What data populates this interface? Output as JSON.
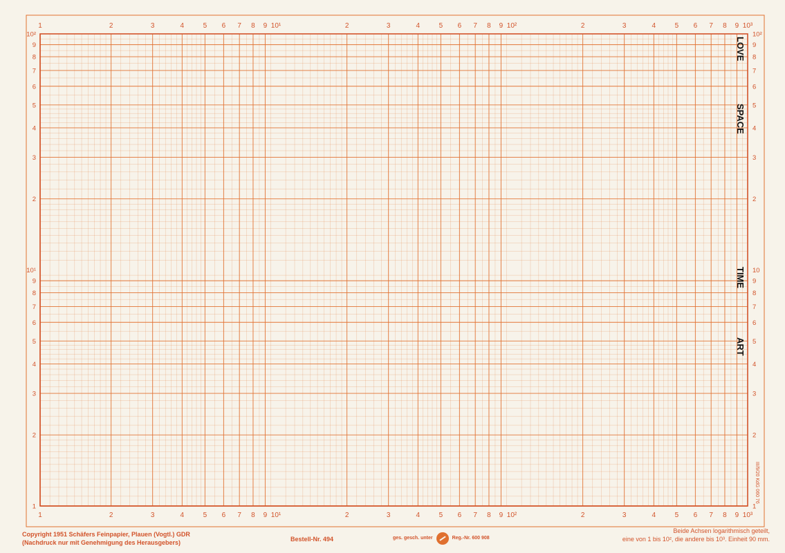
{
  "paper": {
    "x_axis": {
      "scale": "log",
      "range": [
        1,
        1000
      ],
      "decades": 3,
      "top_labels": [
        "1",
        "2",
        "3",
        "4",
        "5",
        "6",
        "7",
        "8",
        "9",
        "10¹",
        "2",
        "3",
        "4",
        "5",
        "6",
        "7",
        "8",
        "9",
        "10²",
        "2",
        "3",
        "4",
        "5",
        "6",
        "7",
        "8",
        "9",
        "10³"
      ],
      "bottom_labels": [
        "1",
        "2",
        "3",
        "4",
        "5",
        "6",
        "7",
        "8",
        "9",
        "10¹",
        "2",
        "3",
        "4",
        "5",
        "6",
        "7",
        "8",
        "9",
        "10²",
        "2",
        "3",
        "4",
        "5",
        "6",
        "7",
        "8",
        "9",
        "10³"
      ]
    },
    "y_axis": {
      "scale": "log",
      "range": [
        1,
        100
      ],
      "decades": 2,
      "left_labels": [
        "1",
        "2",
        "3",
        "4",
        "5",
        "6",
        "7",
        "8",
        "9",
        "10¹",
        "2",
        "3",
        "4",
        "5",
        "6",
        "7",
        "8",
        "9",
        "10²"
      ],
      "right_labels": [
        "1",
        "2",
        "3",
        "4",
        "5",
        "6",
        "7",
        "8",
        "9",
        "10",
        "2",
        "3",
        "4",
        "5",
        "6",
        "7",
        "8",
        "9",
        "10²"
      ]
    },
    "grid_color": "#e0702f",
    "paper_color": "#f7f3ea"
  },
  "stamps": {
    "love": "LOVE",
    "space": "SPACE",
    "time": "TIME",
    "art": "ART"
  },
  "footer": {
    "copyright_line1": "Copyright 1951 Schäfers Feinpapier, Plauen (Vogtl.) GDR",
    "copyright_line2": "(Nachdruck nur mit Genehmigung des Herausgebers)",
    "order_number": "Bestell-Nr. 494",
    "protected": "ges. gesch. unter",
    "reg_number": "Reg.-Nr. 600 908",
    "description_line1": "Beide Achsen logarithmisch geteilt,",
    "description_line2": "eine von 1 bis 10², die andere bis 10³. Einheit 90 mm.",
    "print_code": "III/9/20 KdG 060 76"
  }
}
